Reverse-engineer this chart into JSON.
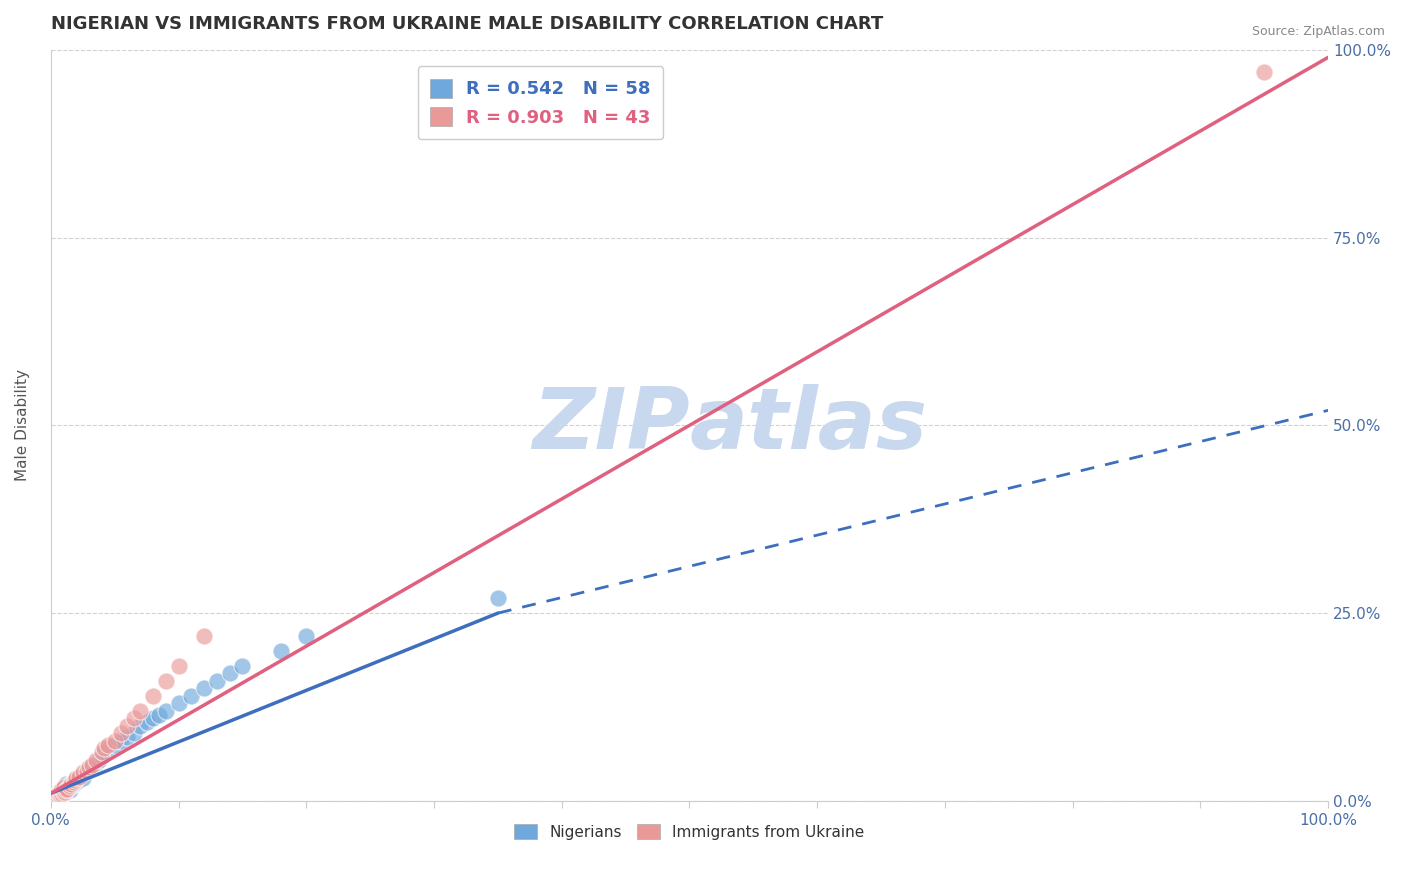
{
  "title": "NIGERIAN VS IMMIGRANTS FROM UKRAINE MALE DISABILITY CORRELATION CHART",
  "source": "Source: ZipAtlas.com",
  "ylabel": "Male Disability",
  "xlim": [
    0,
    1
  ],
  "ylim": [
    0,
    1
  ],
  "xticks": [
    0.0,
    0.1,
    0.2,
    0.3,
    0.4,
    0.5,
    0.6,
    0.7,
    0.8,
    0.9,
    1.0
  ],
  "xtick_labels": [
    "0.0%",
    "",
    "",
    "",
    "",
    "",
    "",
    "",
    "",
    "",
    "100.0%"
  ],
  "ytick_labels": [
    "0.0%",
    "25.0%",
    "50.0%",
    "75.0%",
    "100.0%"
  ],
  "yticks": [
    0.0,
    0.25,
    0.5,
    0.75,
    1.0
  ],
  "legend_r1": "R = 0.542   N = 58",
  "legend_r2": "R = 0.903   N = 43",
  "legend_label1": "Nigerians",
  "legend_label2": "Immigrants from Ukraine",
  "nigerian_color": "#6fa8dc",
  "ukraine_color": "#ea9999",
  "trend_nigerian_color": "#3d6fbe",
  "trend_ukraine_color": "#e06080",
  "watermark_color": "#c8d8ee",
  "nigerian_x": [
    0.003,
    0.004,
    0.005,
    0.005,
    0.006,
    0.006,
    0.007,
    0.007,
    0.008,
    0.008,
    0.009,
    0.009,
    0.01,
    0.01,
    0.011,
    0.011,
    0.012,
    0.012,
    0.013,
    0.014,
    0.015,
    0.015,
    0.016,
    0.017,
    0.018,
    0.019,
    0.02,
    0.021,
    0.022,
    0.023,
    0.025,
    0.027,
    0.028,
    0.03,
    0.032,
    0.035,
    0.038,
    0.04,
    0.042,
    0.045,
    0.05,
    0.055,
    0.06,
    0.065,
    0.07,
    0.075,
    0.08,
    0.085,
    0.09,
    0.1,
    0.11,
    0.12,
    0.13,
    0.14,
    0.15,
    0.18,
    0.2,
    0.35
  ],
  "nigerian_y": [
    0.003,
    0.004,
    0.005,
    0.008,
    0.006,
    0.01,
    0.007,
    0.012,
    0.008,
    0.015,
    0.009,
    0.013,
    0.01,
    0.018,
    0.011,
    0.02,
    0.012,
    0.022,
    0.015,
    0.018,
    0.015,
    0.022,
    0.02,
    0.025,
    0.022,
    0.027,
    0.025,
    0.03,
    0.028,
    0.032,
    0.03,
    0.038,
    0.04,
    0.042,
    0.048,
    0.05,
    0.055,
    0.06,
    0.065,
    0.07,
    0.075,
    0.08,
    0.085,
    0.09,
    0.1,
    0.105,
    0.11,
    0.115,
    0.12,
    0.13,
    0.14,
    0.15,
    0.16,
    0.17,
    0.18,
    0.2,
    0.22,
    0.27
  ],
  "ukraine_x": [
    0.002,
    0.003,
    0.004,
    0.004,
    0.005,
    0.005,
    0.006,
    0.006,
    0.007,
    0.007,
    0.008,
    0.008,
    0.009,
    0.009,
    0.01,
    0.01,
    0.011,
    0.012,
    0.013,
    0.015,
    0.016,
    0.018,
    0.019,
    0.02,
    0.022,
    0.025,
    0.028,
    0.03,
    0.032,
    0.035,
    0.04,
    0.042,
    0.045,
    0.05,
    0.055,
    0.06,
    0.065,
    0.07,
    0.08,
    0.09,
    0.1,
    0.12,
    0.95
  ],
  "ukraine_y": [
    0.002,
    0.003,
    0.004,
    0.007,
    0.005,
    0.009,
    0.006,
    0.011,
    0.007,
    0.013,
    0.008,
    0.015,
    0.009,
    0.016,
    0.01,
    0.018,
    0.012,
    0.015,
    0.016,
    0.02,
    0.022,
    0.025,
    0.028,
    0.03,
    0.032,
    0.038,
    0.04,
    0.045,
    0.048,
    0.055,
    0.065,
    0.07,
    0.075,
    0.08,
    0.09,
    0.1,
    0.11,
    0.12,
    0.14,
    0.16,
    0.18,
    0.22,
    0.97
  ],
  "nig_trend_x0": 0.0,
  "nig_trend_y0": 0.01,
  "nig_trend_x1": 0.35,
  "nig_trend_y1": 0.25,
  "nig_trend_dash_x1": 1.0,
  "nig_trend_dash_y1": 0.52,
  "ukr_trend_x0": 0.0,
  "ukr_trend_y0": 0.01,
  "ukr_trend_x1": 1.0,
  "ukr_trend_y1": 0.99
}
